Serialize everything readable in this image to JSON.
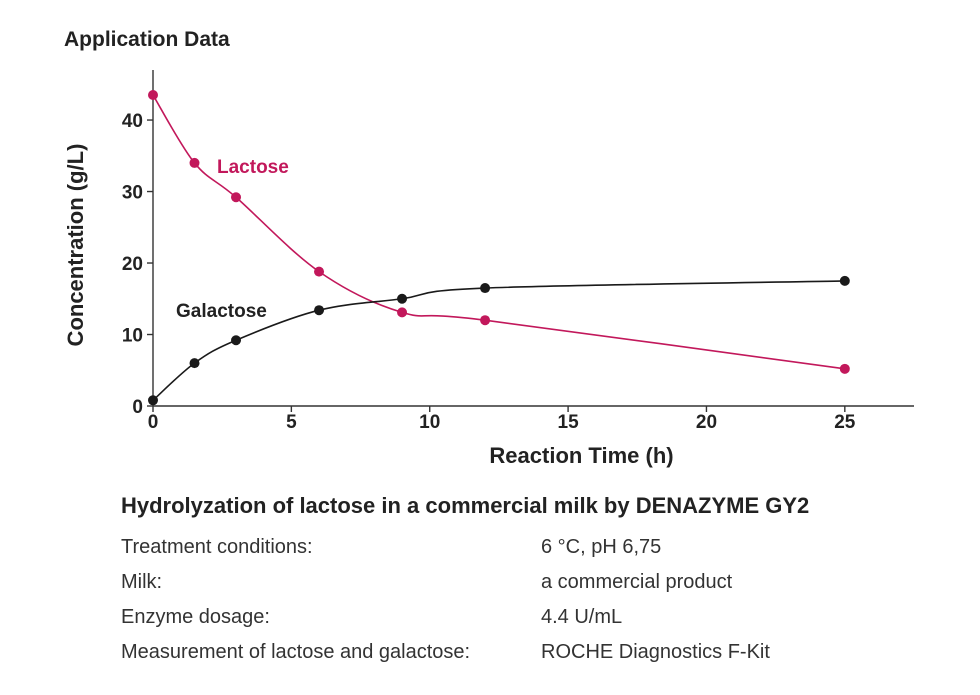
{
  "header": {
    "title": "Application Data"
  },
  "chart_data": {
    "type": "line",
    "xlabel": "Reaction Time (h)",
    "ylabel": "Concentration (g/L)",
    "xlim": [
      0,
      27.5
    ],
    "ylim": [
      0,
      47
    ],
    "xticks": [
      0,
      5,
      10,
      15,
      20,
      25
    ],
    "yticks": [
      0,
      10,
      20,
      30,
      40
    ],
    "grid": false,
    "series": [
      {
        "name": "Lactose",
        "color": "#c2185b",
        "x": [
          0,
          1.5,
          3,
          6,
          9,
          12,
          25
        ],
        "y": [
          43.5,
          34,
          29.2,
          18.8,
          13.1,
          12,
          5.2
        ]
      },
      {
        "name": "Galactose",
        "color": "#1a1a1a",
        "x": [
          0,
          1.5,
          3,
          6,
          9,
          12,
          25
        ],
        "y": [
          0.8,
          6,
          9.2,
          13.4,
          15,
          16.5,
          17.5
        ]
      }
    ]
  },
  "caption": "Hydrolyzation of lactose in a commercial milk by DENAZYME GY2",
  "info": [
    {
      "label": "Treatment conditions:",
      "value": "6 °C, pH 6,75"
    },
    {
      "label": "Milk:",
      "value": "a commercial product"
    },
    {
      "label": "Enzyme dosage:",
      "value": "4.4 U/mL"
    },
    {
      "label": "Measurement of lactose and galactose:",
      "value": "ROCHE Diagnostics F-Kit"
    }
  ]
}
